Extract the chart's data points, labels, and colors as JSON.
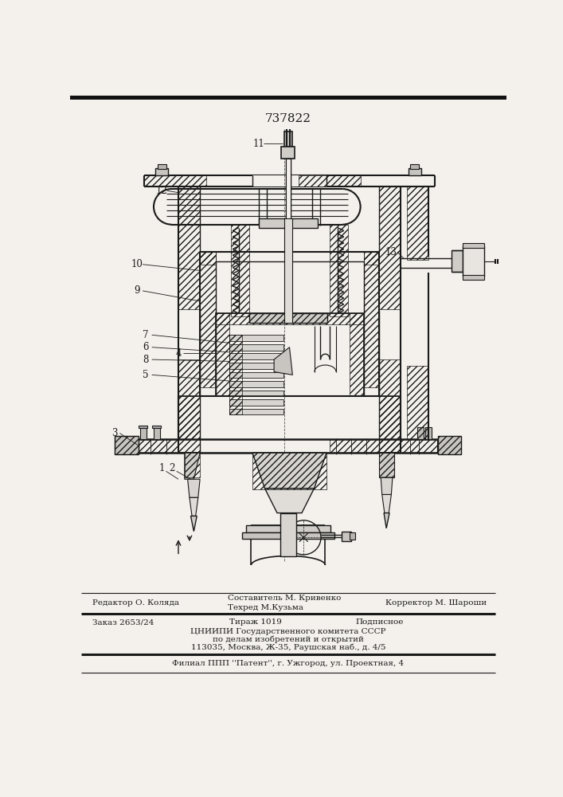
{
  "patent_number": "737822",
  "paper_color": "#f4f1ec",
  "drawing_color": "#1a1a1a",
  "footer": {
    "editor": "Редактор О. Коляда",
    "compiler": "Составитель М. Кривенко",
    "techred": "Техред М.Кузьма",
    "corrector": "Корректор М. Шароши",
    "order": "Заказ 2653/24",
    "tirazh": "Тираж 1019",
    "podpisnoe": "Подписное",
    "inst1": "ЦНИИПИ Государственного комитета СССР",
    "inst2": "по делам изобретений и открытий",
    "inst3": "113035, Москва, Ж-35, Раушская наб., д. 4/5",
    "filial": "Филиал ППП ''Патент'', г. Ужгород, ул. Проектная, 4"
  }
}
